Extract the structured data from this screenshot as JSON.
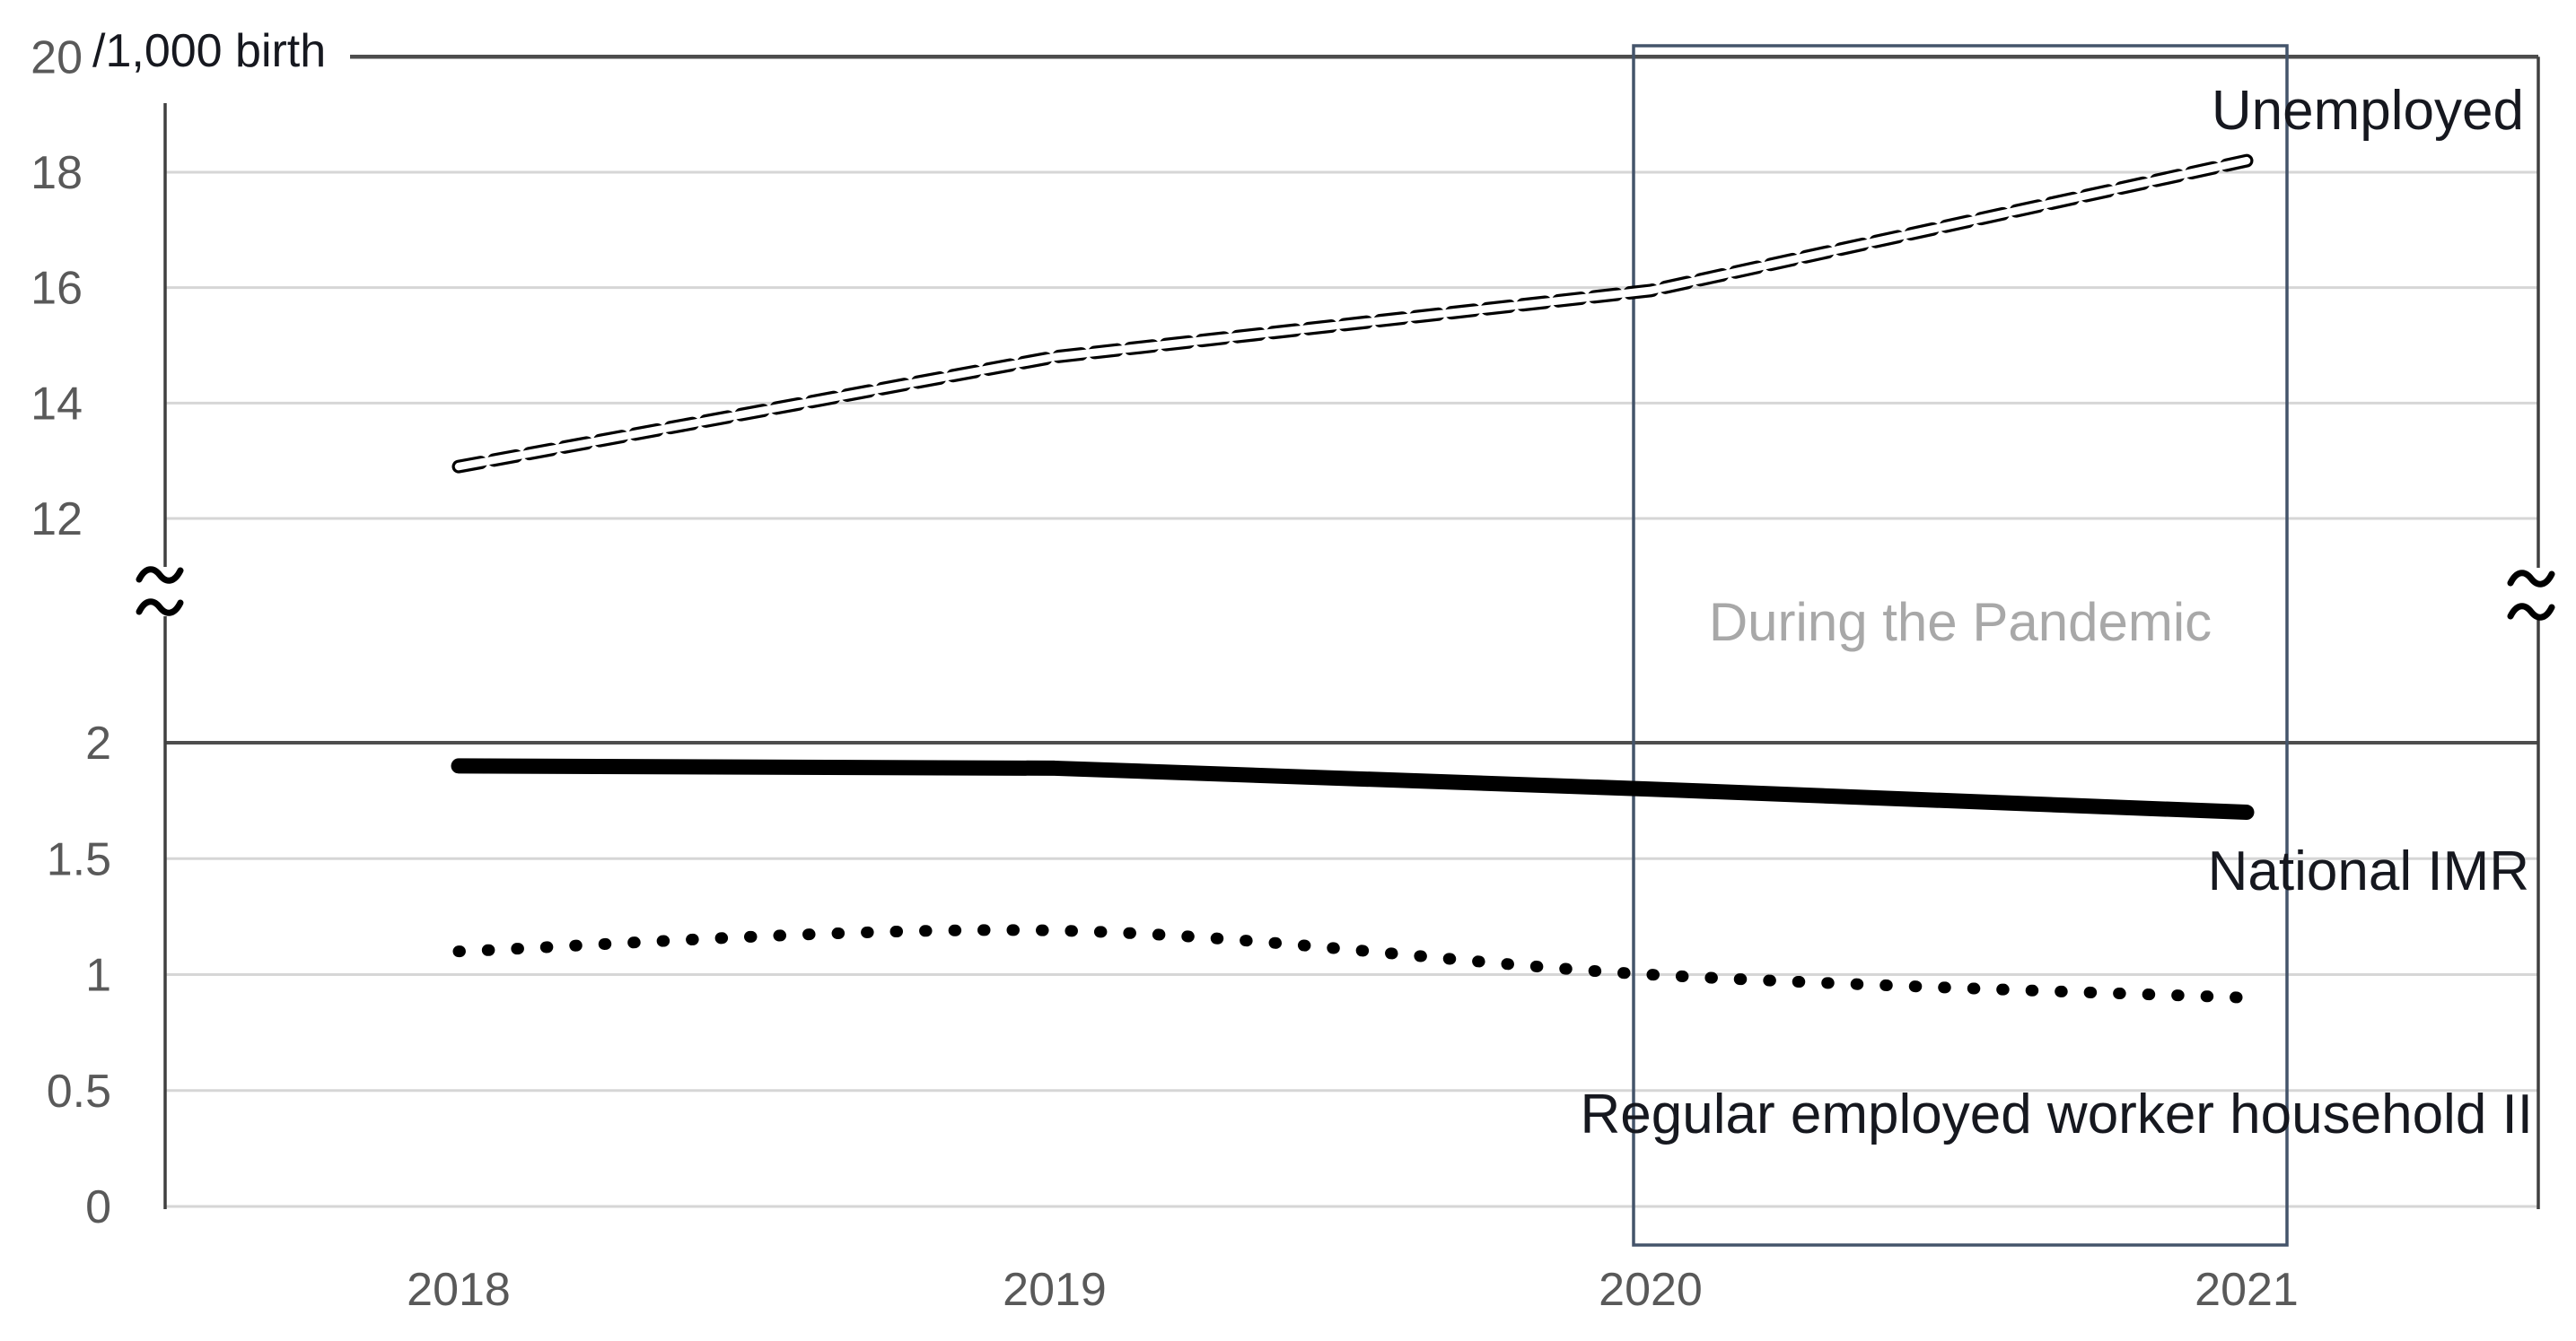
{
  "chart_data": {
    "type": "line",
    "unit_label": "/1,000 birth",
    "x": [
      "2018",
      "2019",
      "2020",
      "2021"
    ],
    "xlabel": "",
    "ylabel": "/1,000 birth",
    "series": [
      {
        "name": "Unemployed",
        "values": [
          12.9,
          14.8,
          15.95,
          18.2
        ],
        "style": "white-tube-dashed-outline",
        "color": "#000000"
      },
      {
        "name": "National IMR",
        "values": [
          1.9,
          1.89,
          1.8,
          1.7
        ],
        "style": "thick-solid",
        "color": "#000000"
      },
      {
        "name": "Regular employed worker household II",
        "values": [
          1.1,
          1.19,
          1.0,
          0.9
        ],
        "style": "dotted",
        "color": "#000000"
      }
    ],
    "y_axis": {
      "broken": true,
      "upper_ticks": [
        "20",
        "18",
        "16",
        "14",
        "12"
      ],
      "lower_ticks": [
        "2",
        "1.5",
        "1",
        "0.5",
        "0"
      ],
      "upper_range": [
        12,
        20
      ],
      "lower_range": [
        0,
        2
      ],
      "dark_rule_values": [
        20,
        2
      ]
    },
    "annotations": [
      {
        "label": "During the Pandemic",
        "x_range": [
          "2020",
          "2021"
        ]
      }
    ],
    "grid": true,
    "legend_position": "inline-right-of-lines"
  },
  "colors": {
    "background": "#ffffff",
    "gridline": "#d6d6d6",
    "dark_rule": "#4d4d4d",
    "axis": "#404040",
    "tick_text": "#595959",
    "pandemic_box": "#44546a",
    "pandemic_text": "#a8a8a8",
    "series_text": "#16181f",
    "series_stroke": "#000000"
  }
}
